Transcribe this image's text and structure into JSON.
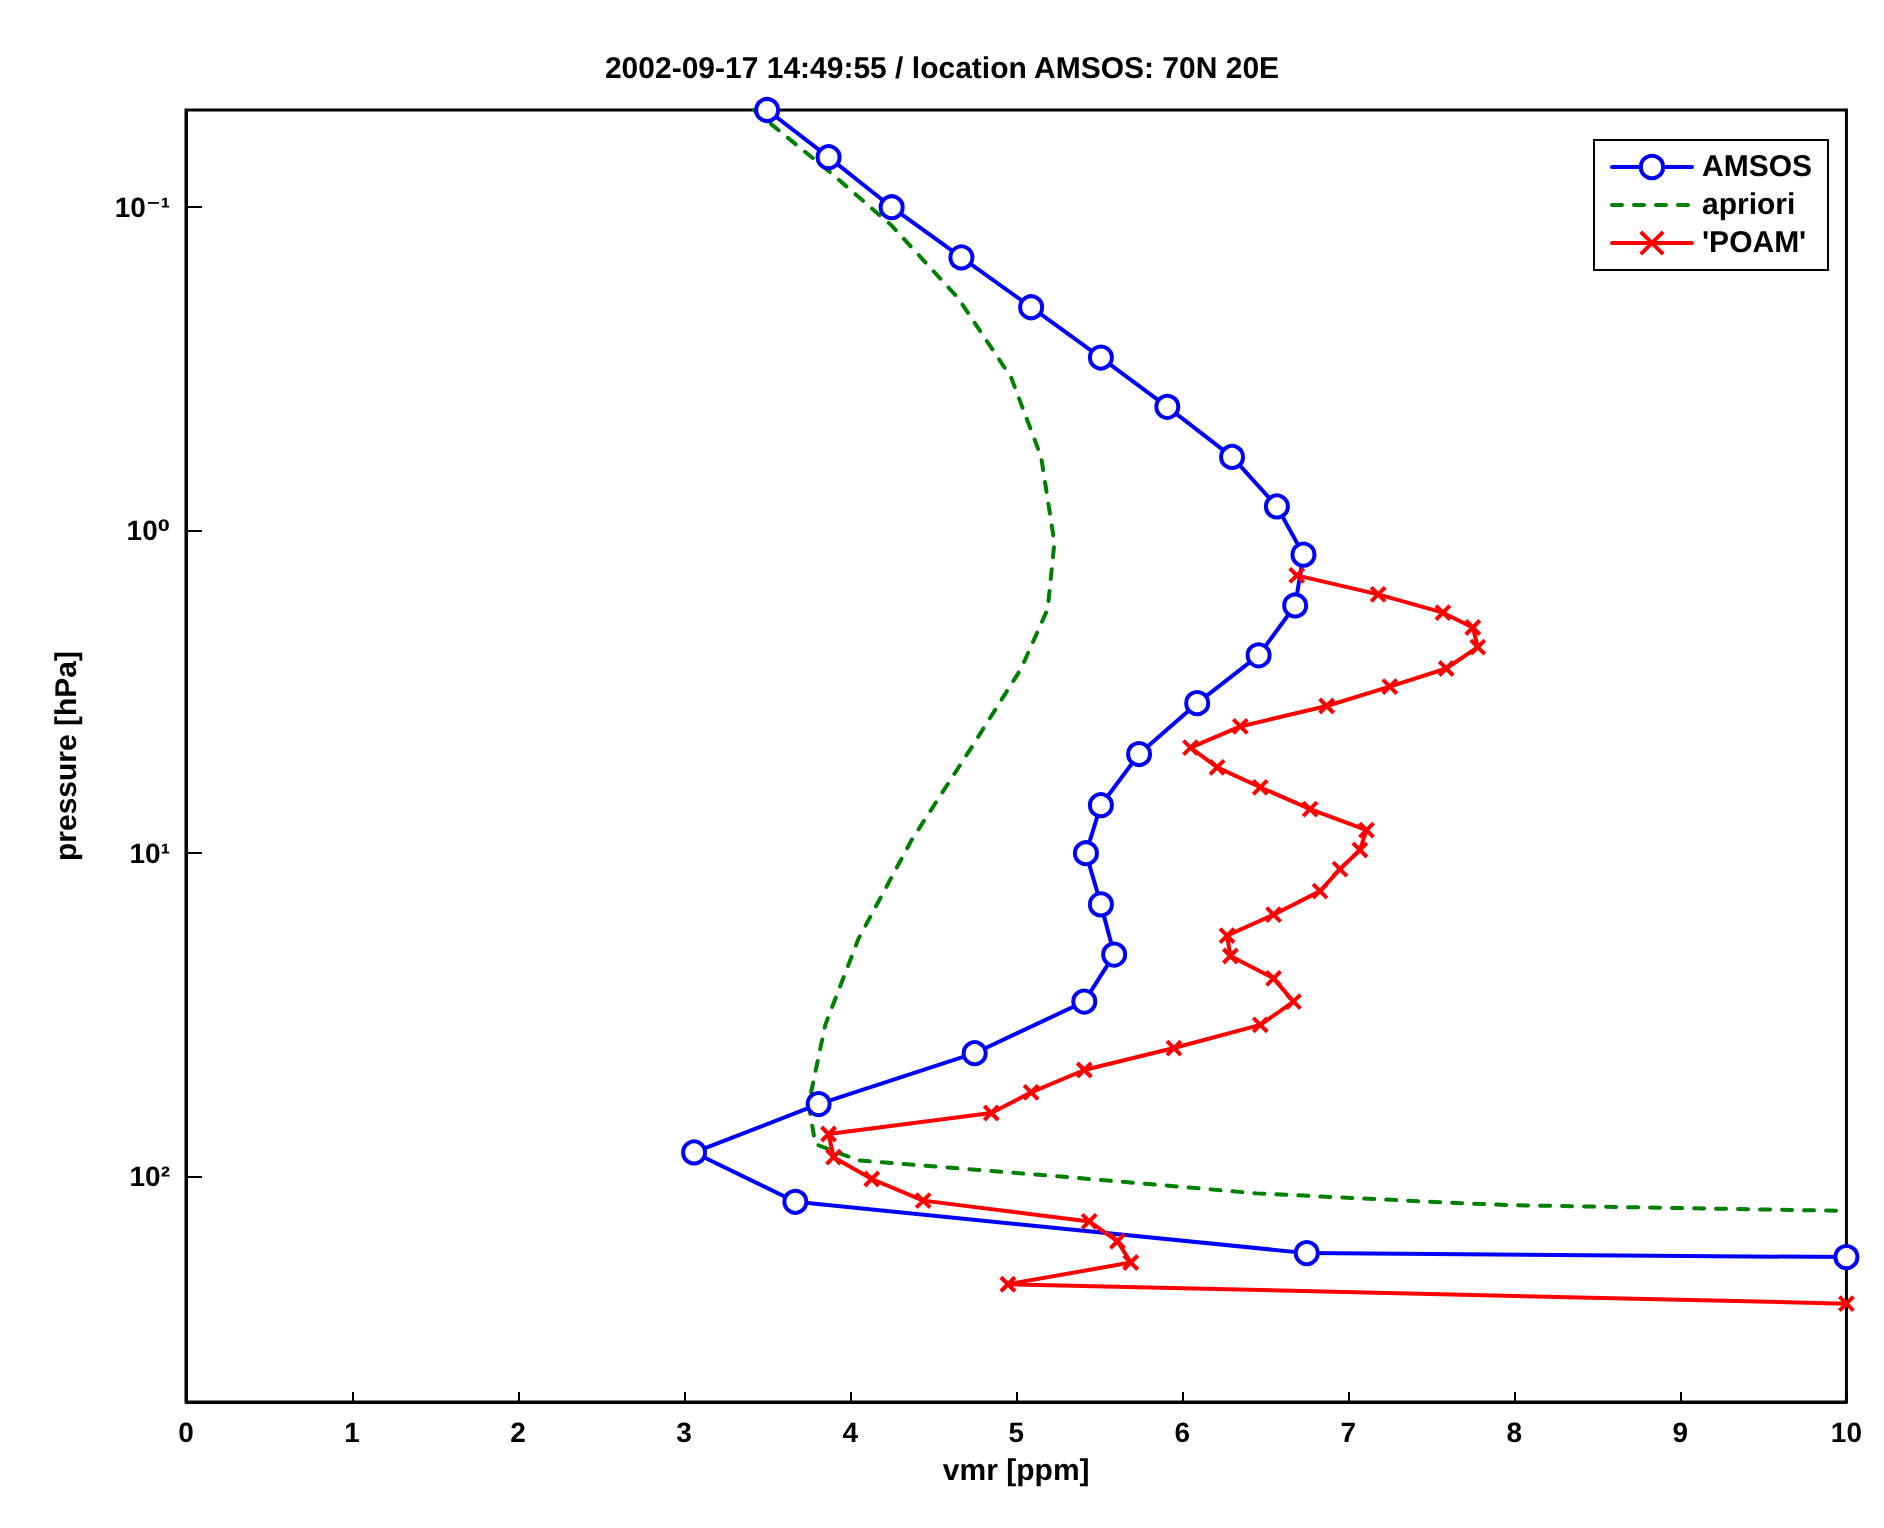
{
  "chart_data": {
    "type": "line",
    "title": "2002-09-17 14:49:55 / location AMSOS: 70N 20E",
    "xlabel": "vmr [ppm]",
    "ylabel": "pressure [hPa]",
    "xlim": [
      0,
      10
    ],
    "xticks": [
      0,
      1,
      2,
      3,
      4,
      5,
      6,
      7,
      8,
      9,
      10
    ],
    "ylim": [
      500,
      0.05
    ],
    "yticks": [
      {
        "value": 0.1,
        "label": "10⁻¹"
      },
      {
        "value": 1,
        "label": "10⁰"
      },
      {
        "value": 10,
        "label": "10¹"
      },
      {
        "value": 100,
        "label": "10²"
      }
    ],
    "log": "y",
    "grid": false,
    "legend": "top right",
    "series": [
      {
        "name": "AMSOS",
        "color": "#0000ff",
        "marker": "circle",
        "line_style": "solid",
        "x": [
          3.5,
          3.87,
          4.25,
          4.67,
          5.09,
          5.51,
          5.91,
          6.3,
          6.57,
          6.73,
          6.68,
          6.46,
          6.09,
          5.74,
          5.51,
          5.42,
          5.51,
          5.59,
          5.41,
          4.75,
          3.81,
          3.06,
          3.67,
          6.75,
          10
        ],
        "values": [
          0.05,
          0.07,
          0.1,
          0.143,
          0.204,
          0.292,
          0.415,
          0.593,
          0.844,
          1.19,
          1.71,
          2.44,
          3.43,
          4.93,
          7.1,
          10,
          14.4,
          20.6,
          28.8,
          41.6,
          59.8,
          84.4,
          120,
          173,
          178
        ]
      },
      {
        "name": "apriori",
        "color": "#008000",
        "marker": "none",
        "line_style": "dashed",
        "x": [
          3.42,
          3.88,
          4.25,
          4.65,
          4.97,
          5.15,
          5.23,
          5.19,
          5.03,
          4.73,
          4.37,
          4.05,
          3.85,
          3.75,
          3.79,
          4.05,
          5.25,
          6.45,
          7.65,
          8.0,
          10
        ],
        "values": [
          0.05,
          0.078,
          0.114,
          0.191,
          0.337,
          0.593,
          1.09,
          1.75,
          2.68,
          4.71,
          9.1,
          18.4,
          34,
          59.8,
          79.5,
          89.3,
          100,
          113,
          121,
          123,
          128
        ]
      },
      {
        "name": "'POAM'",
        "color": "#ff0000",
        "marker": "cross",
        "line_style": "solid",
        "x": [
          6.69,
          7.18,
          7.57,
          7.75,
          7.78,
          7.59,
          7.25,
          6.87,
          6.35,
          6.05,
          6.21,
          6.47,
          6.77,
          7.11,
          7.07,
          6.95,
          6.83,
          6.55,
          6.27,
          6.29,
          6.55,
          6.67,
          6.47,
          5.95,
          5.41,
          5.09,
          4.85,
          3.87,
          3.9,
          4.13,
          4.44,
          5.44,
          5.61,
          5.69,
          4.95,
          10
        ],
        "values": [
          1.38,
          1.58,
          1.8,
          2.0,
          2.3,
          2.68,
          3.05,
          3.5,
          4.05,
          4.71,
          5.42,
          6.25,
          7.3,
          8.48,
          9.77,
          11.2,
          13.1,
          15.5,
          18.0,
          20.8,
          24.4,
          28.8,
          34.0,
          40.1,
          46.9,
          55.0,
          63.7,
          74.0,
          87.3,
          102,
          119,
          138,
          159,
          185,
          216,
          248
        ]
      }
    ]
  }
}
